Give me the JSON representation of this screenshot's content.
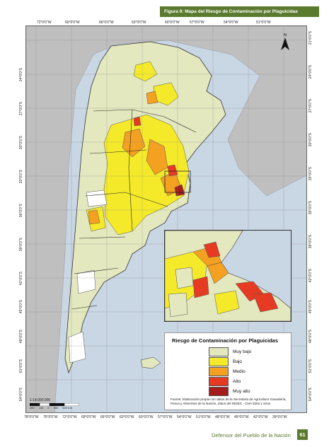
{
  "header": {
    "title": "Figura 9: Mapa del Riesgo de Contaminación por Plaguicidas"
  },
  "graticule": {
    "top_lon": [
      "72°0'0\"W",
      "69°0'0\"W",
      "66°0'0\"W",
      "63°0'0\"W",
      "60°0'0\"W",
      "57°0'0\"W",
      "54°0'0\"W",
      "51°0'0\"W"
    ],
    "bottom_lon": [
      "78°0'0\"W",
      "75°0'0\"W",
      "72°0'0\"W",
      "69°0'0\"W",
      "66°0'0\"W",
      "63°0'0\"W",
      "60°0'0\"W",
      "57°0'0\"W",
      "54°0'0\"W",
      "51°0'0\"W",
      "48°0'0\"W",
      "45°0'0\"W",
      "42°0'0\"W",
      "39°0'0\"W"
    ],
    "left_lat": [
      "24°0'0\"S",
      "27°0'0\"S",
      "30°0'0\"S",
      "33°0'0\"S",
      "36°0'0\"S",
      "39°0'0\"S",
      "42°0'0\"S",
      "45°0'0\"S",
      "48°0'0\"S",
      "51°0'0\"S",
      "54°0'0\"S"
    ],
    "right_lat": [
      "21°0'0\"S",
      "24°0'0\"S",
      "27°0'0\"S",
      "30°0'0\"S",
      "33°0'0\"S",
      "36°0'0\"S",
      "39°0'0\"S",
      "42°0'0\"S",
      "45°0'0\"S",
      "48°0'0\"S",
      "51°0'0\"S",
      "54°0'0\"S"
    ]
  },
  "north": {
    "label": "N"
  },
  "legend": {
    "title": "Riesgo de Contaminación por Plaguicidas",
    "items": [
      {
        "label": "Muy bajo",
        "color": "#e3e8bf"
      },
      {
        "label": "Bajo",
        "color": "#f5ea2a"
      },
      {
        "label": "Medio",
        "color": "#f4a020"
      },
      {
        "label": "Alto",
        "color": "#e63a22"
      },
      {
        "label": "Muy alto",
        "color": "#a51c1c"
      }
    ],
    "source": "Fuente: Elaboración propia con datos de la Secretaría de Agricultura Ganadería, Pesca y Alimentos de la Nación, datos del INDEC - CNA 2002 y otros."
  },
  "scale": {
    "ratio": "1:14.000.000",
    "ticks": [
      "260",
      "130",
      "0",
      "260",
      "520 Km"
    ]
  },
  "footer": {
    "text": "Defensor del Pueblo de la Nación",
    "page": "61"
  }
}
